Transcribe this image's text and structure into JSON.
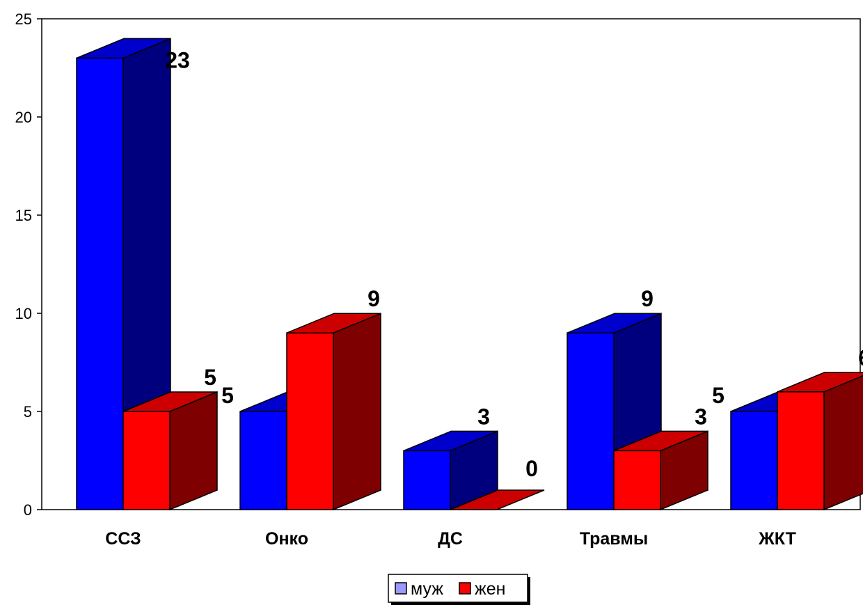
{
  "chart_data": {
    "type": "bar",
    "categories": [
      "ССЗ",
      "Онко",
      "ДС",
      "Травмы",
      "ЖКТ"
    ],
    "series": [
      {
        "name": "муж",
        "values": [
          23,
          5,
          3,
          9,
          5
        ],
        "color": "#0000FF",
        "side_color": "#00007F",
        "legend_color": "#9999FF"
      },
      {
        "name": "жен",
        "values": [
          5,
          9,
          0,
          3,
          6
        ],
        "color": "#FF0000",
        "side_color": "#7F0000",
        "legend_color": "#FF0000"
      }
    ],
    "ylim": [
      0,
      25
    ],
    "yticks": [
      0,
      5,
      10,
      15,
      20,
      25
    ],
    "title": "",
    "xlabel": "",
    "ylabel": "",
    "grid": false,
    "legend_position": "bottom",
    "data_labels": true,
    "three_d": true
  }
}
